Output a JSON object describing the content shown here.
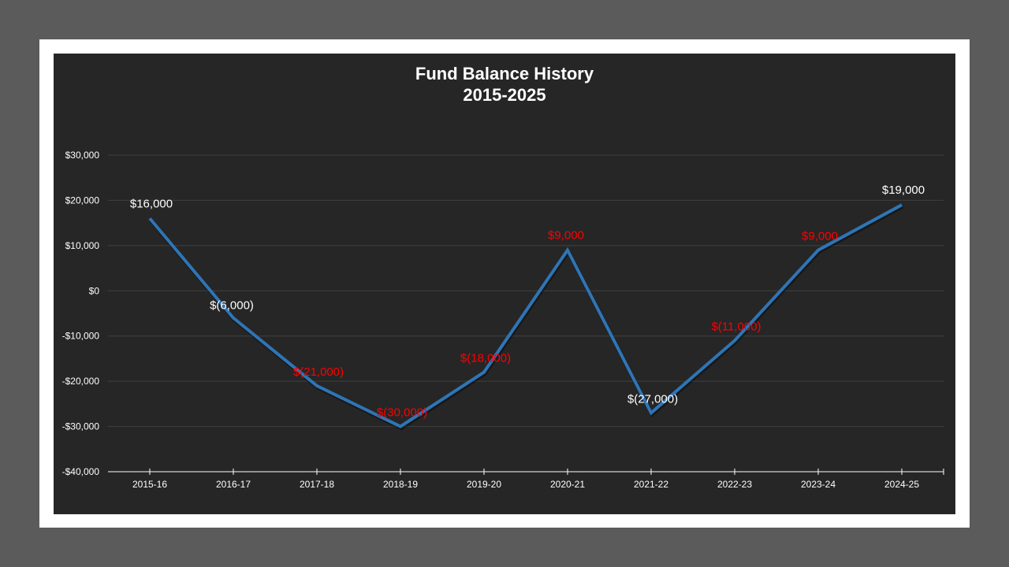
{
  "chart_data": {
    "type": "line",
    "title": "Fund Balance History",
    "subtitle": "2015-2025",
    "xlabel": "",
    "ylabel": "",
    "categories": [
      "2015-16",
      "2016-17",
      "2017-18",
      "2018-19",
      "2019-20",
      "2020-21",
      "2021-22",
      "2022-23",
      "2023-24",
      "2024-25"
    ],
    "series": [
      {
        "name": "Fund Balance",
        "color": "#2e75b6",
        "values": [
          16000,
          -6000,
          -21000,
          -30000,
          -18000,
          9000,
          -27000,
          -11000,
          9000,
          19000
        ],
        "data_labels": [
          "$16,000",
          "$(6,000)",
          "$(21,000)",
          "$(30,000)",
          "$(18,000)",
          "$9,000",
          "$(27,000)",
          "$(11,000)",
          "$9,000",
          "$19,000"
        ],
        "data_label_colors": [
          "#ffffff",
          "#ffffff",
          "#ff0000",
          "#ff0000",
          "#ff0000",
          "#ff0000",
          "#ffffff",
          "#ff0000",
          "#ff0000",
          "#ffffff"
        ]
      }
    ],
    "ylim": [
      -40000,
      30000
    ],
    "yticks": [
      30000,
      20000,
      10000,
      0,
      -10000,
      -20000,
      -30000,
      -40000
    ],
    "ytick_labels": [
      "$30,000",
      "$20,000",
      "$10,000",
      "$0",
      "-$10,000",
      "-$20,000",
      "-$30,000",
      "-$40,000"
    ],
    "grid": true,
    "legend": "none"
  },
  "colors": {
    "page_background": "#5b5b5b",
    "frame": "#ffffff",
    "plot_background": "#262626",
    "gridline": "#404040",
    "axis": "#ffffff",
    "line": "#2e75b6",
    "label_positive": "#ffffff",
    "label_highlight": "#ff0000"
  }
}
